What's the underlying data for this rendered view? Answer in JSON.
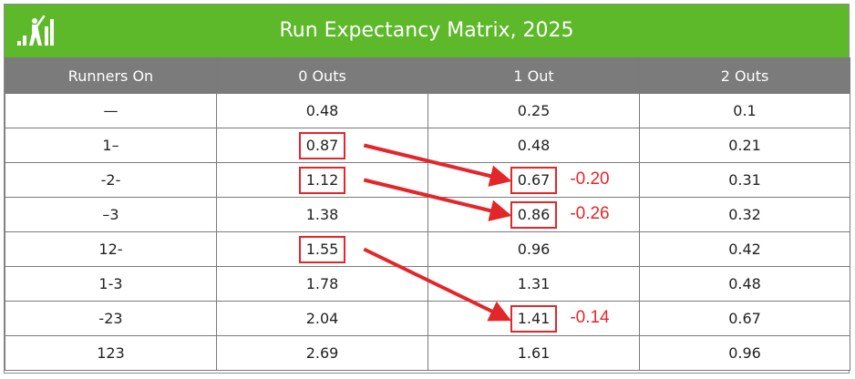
{
  "header": {
    "title": "Run Expectancy Matrix, 2025",
    "logo_icon": "baseball-batter-chart-icon",
    "bar_color": "#5db82a"
  },
  "chart_data": {
    "type": "table",
    "title": "Run Expectancy Matrix, 2025",
    "columns": [
      "Runners On",
      "0 Outs",
      "1 Out",
      "2 Outs"
    ],
    "rows": [
      {
        "runners": "—",
        "values": [
          "0.48",
          "0.25",
          "0.1"
        ]
      },
      {
        "runners": "1–",
        "values": [
          "0.87",
          "0.48",
          "0.21"
        ]
      },
      {
        "runners": "-2-",
        "values": [
          "1.12",
          "0.67",
          "0.31"
        ]
      },
      {
        "runners": "–3",
        "values": [
          "1.38",
          "0.86",
          "0.32"
        ]
      },
      {
        "runners": "12-",
        "values": [
          "1.55",
          "0.96",
          "0.42"
        ]
      },
      {
        "runners": "1-3",
        "values": [
          "1.78",
          "1.31",
          "0.48"
        ]
      },
      {
        "runners": "-23",
        "values": [
          "2.04",
          "1.41",
          "0.67"
        ]
      },
      {
        "runners": "123",
        "values": [
          "2.69",
          "1.61",
          "0.96"
        ]
      }
    ],
    "annotations": [
      {
        "from": {
          "runners": "1–",
          "col": "0 Outs",
          "value": "0.87"
        },
        "to": {
          "runners": "-2-",
          "col": "1 Out",
          "value": "0.67"
        },
        "label": "-0.20"
      },
      {
        "from": {
          "runners": "-2-",
          "col": "0 Outs",
          "value": "1.12"
        },
        "to": {
          "runners": "–3",
          "col": "1 Out",
          "value": "0.86"
        },
        "label": "-0.26"
      },
      {
        "from": {
          "runners": "12-",
          "col": "0 Outs",
          "value": "1.55"
        },
        "to": {
          "runners": "-23",
          "col": "1 Out",
          "value": "1.41"
        },
        "label": "-0.14"
      }
    ],
    "header_color": "#7b7b7b",
    "annotation_color": "#e3262a"
  }
}
